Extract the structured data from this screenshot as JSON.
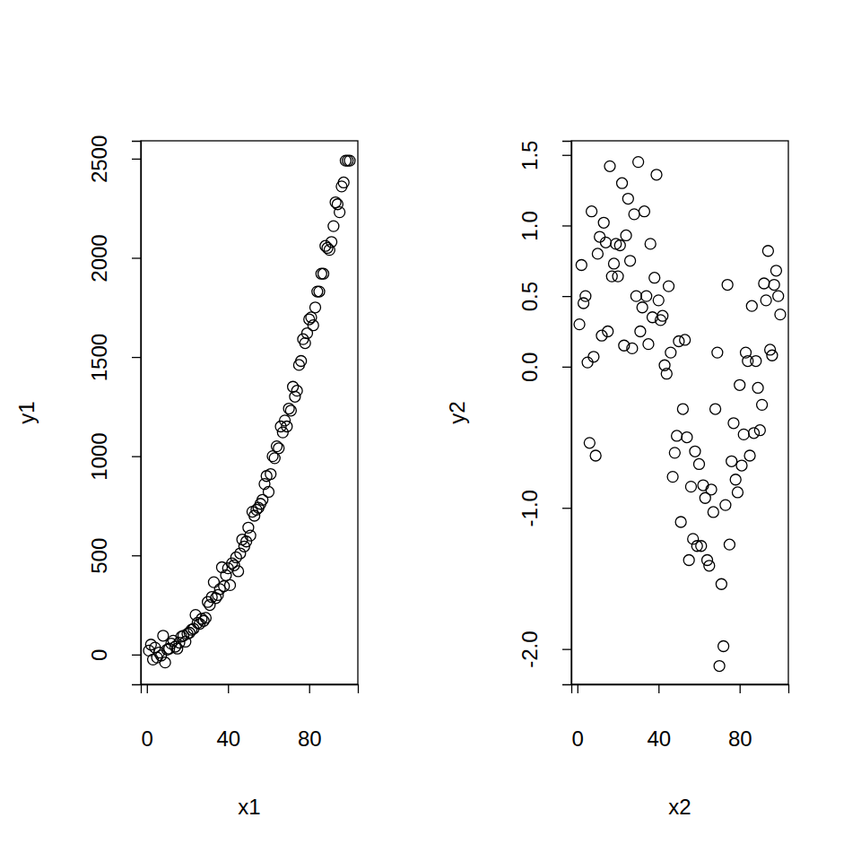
{
  "chart_data": [
    {
      "type": "scatter",
      "xlabel": "x1",
      "ylabel": "y1",
      "color": "#000000",
      "marker": "circle",
      "xlim": [
        -3,
        104
      ],
      "ylim": [
        -150,
        2590
      ],
      "xticks": [
        0,
        40,
        80
      ],
      "yticks": [
        0,
        500,
        1000,
        1500,
        2000,
        2500
      ],
      "x": [
        1,
        2,
        3,
        4,
        5,
        6,
        7,
        8,
        9,
        10,
        11,
        12,
        13,
        14,
        15,
        16,
        17,
        18,
        19,
        20,
        21,
        22,
        23,
        24,
        25,
        26,
        27,
        28,
        29,
        30,
        31,
        32,
        33,
        34,
        35,
        36,
        37,
        38,
        39,
        40,
        41,
        42,
        43,
        44,
        45,
        46,
        47,
        48,
        49,
        50,
        51,
        52,
        53,
        54,
        55,
        56,
        57,
        58,
        59,
        60,
        61,
        62,
        63,
        64,
        65,
        66,
        67,
        68,
        69,
        70,
        71,
        72,
        73,
        74,
        75,
        76,
        77,
        78,
        79,
        80,
        81,
        82,
        83,
        84,
        85,
        86,
        87,
        88,
        89,
        90,
        91,
        92,
        93,
        94,
        95,
        96,
        97,
        98,
        99,
        100
      ],
      "values": [
        20,
        50,
        -25,
        35,
        -15,
        10,
        -5,
        95,
        -40,
        25,
        30,
        55,
        70,
        40,
        30,
        60,
        90,
        95,
        65,
        105,
        110,
        125,
        130,
        200,
        160,
        155,
        180,
        170,
        185,
        265,
        250,
        290,
        365,
        285,
        300,
        330,
        440,
        345,
        400,
        435,
        350,
        460,
        450,
        490,
        420,
        510,
        580,
        545,
        570,
        640,
        600,
        720,
        700,
        730,
        740,
        760,
        780,
        860,
        900,
        820,
        910,
        1000,
        990,
        1050,
        1040,
        1150,
        1120,
        1180,
        1150,
        1240,
        1230,
        1350,
        1300,
        1330,
        1460,
        1480,
        1590,
        1570,
        1620,
        1690,
        1700,
        1660,
        1750,
        1830,
        1830,
        1920,
        1920,
        2060,
        2050,
        2040,
        2080,
        2160,
        2280,
        2270,
        2230,
        2360,
        2380,
        2490,
        2490,
        2490
      ]
    },
    {
      "type": "scatter",
      "xlabel": "x2",
      "ylabel": "y2",
      "color": "#000000",
      "marker": "circle",
      "xlim": [
        -3,
        104
      ],
      "ylim": [
        -2.25,
        1.6
      ],
      "xticks": [
        0,
        40,
        80
      ],
      "yticks": [
        1.5,
        {
          "value": 1.0,
          "label": "1.0"
        },
        0.5,
        {
          "value": 0.0,
          "label": "0.0"
        },
        {
          "value": -1.0,
          "label": "-1.0"
        },
        {
          "value": -2.0,
          "label": "-2.0"
        }
      ],
      "x": [
        1,
        2,
        3,
        4,
        5,
        6,
        7,
        8,
        9,
        10,
        11,
        12,
        13,
        14,
        15,
        16,
        17,
        18,
        19,
        20,
        21,
        22,
        23,
        24,
        25,
        26,
        27,
        28,
        29,
        30,
        31,
        32,
        33,
        34,
        35,
        36,
        37,
        38,
        39,
        40,
        41,
        42,
        43,
        44,
        45,
        46,
        47,
        48,
        49,
        50,
        51,
        52,
        53,
        54,
        55,
        56,
        57,
        58,
        59,
        60,
        61,
        62,
        63,
        64,
        65,
        66,
        67,
        68,
        69,
        70,
        71,
        72,
        73,
        74,
        75,
        76,
        77,
        78,
        79,
        80,
        81,
        82,
        83,
        84,
        85,
        86,
        87,
        88,
        89,
        90,
        91,
        92,
        93,
        94,
        95,
        96,
        97,
        98,
        99,
        100
      ],
      "values": [
        0.3,
        0.72,
        0.45,
        0.5,
        0.03,
        -0.54,
        1.1,
        0.07,
        -0.63,
        0.8,
        0.92,
        0.22,
        1.02,
        0.88,
        0.25,
        1.42,
        0.64,
        0.73,
        0.87,
        0.64,
        0.86,
        1.3,
        0.15,
        0.93,
        1.19,
        0.75,
        0.13,
        1.08,
        0.5,
        1.45,
        0.25,
        0.42,
        1.1,
        0.5,
        0.16,
        0.87,
        0.35,
        0.63,
        1.36,
        0.47,
        0.33,
        0.36,
        0.01,
        -0.05,
        0.57,
        0.1,
        -0.78,
        -0.61,
        -0.49,
        0.18,
        -1.1,
        -0.3,
        0.19,
        -0.5,
        -1.37,
        -0.85,
        -1.22,
        -0.6,
        -1.27,
        -0.69,
        -1.27,
        -0.84,
        -0.93,
        -1.37,
        -1.41,
        -0.87,
        -1.03,
        -0.3,
        0.1,
        -2.12,
        -1.54,
        -1.98,
        -0.98,
        0.58,
        -1.26,
        -0.67,
        -0.4,
        -0.8,
        -0.89,
        -0.13,
        -0.7,
        -0.48,
        0.1,
        0.04,
        -0.63,
        0.43,
        -0.47,
        0.04,
        -0.15,
        -0.45,
        -0.27,
        0.59,
        0.47,
        0.82,
        0.12,
        0.08,
        0.58,
        0.68,
        0.5,
        0.37
      ]
    }
  ]
}
